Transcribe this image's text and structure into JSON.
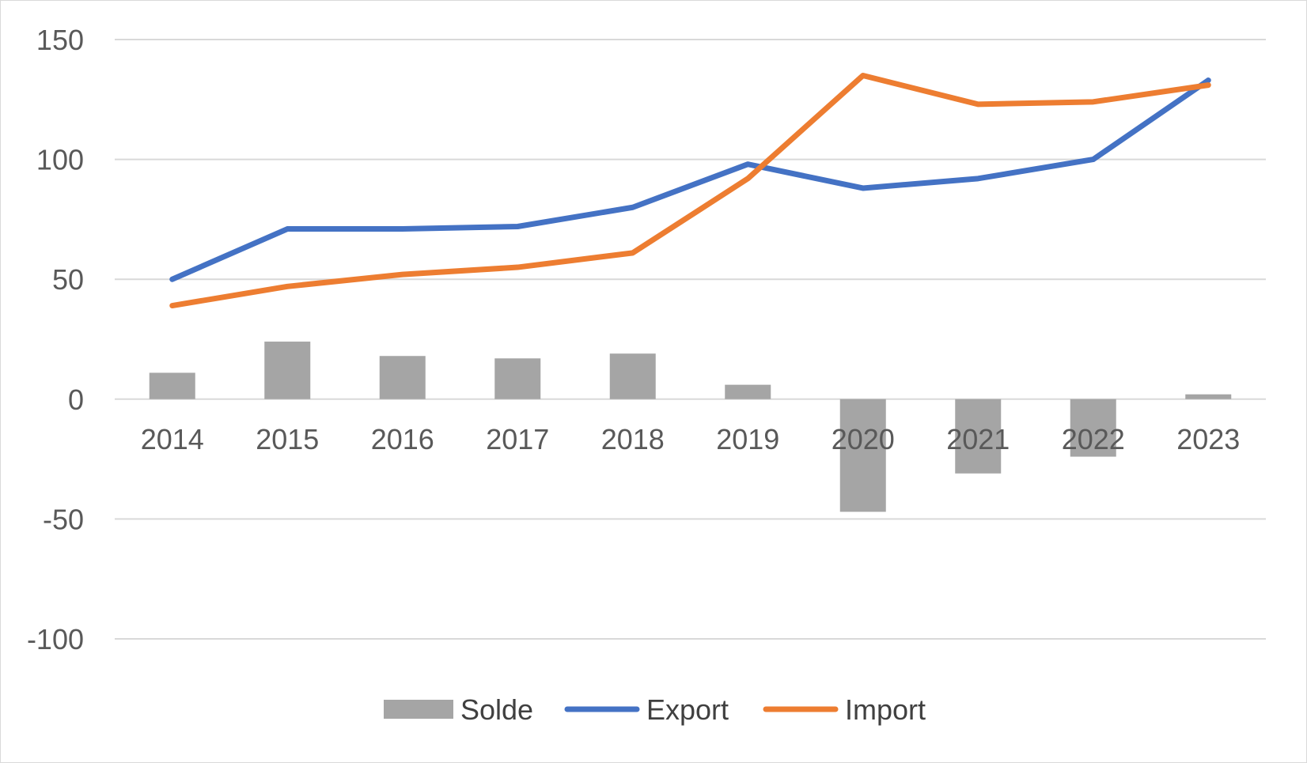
{
  "chart_data": {
    "type": "bar+line",
    "categories": [
      "2014",
      "2015",
      "2016",
      "2017",
      "2018",
      "2019",
      "2020",
      "2021",
      "2022",
      "2023"
    ],
    "series": [
      {
        "name": "Solde",
        "type": "bar",
        "color": "#a5a5a5",
        "values": [
          11,
          24,
          18,
          17,
          19,
          6,
          -47,
          -31,
          -24,
          2
        ]
      },
      {
        "name": "Export",
        "type": "line",
        "color": "#4472c4",
        "values": [
          50,
          71,
          71,
          72,
          80,
          98,
          88,
          92,
          100,
          133
        ]
      },
      {
        "name": "Import",
        "type": "line",
        "color": "#ed7d31",
        "values": [
          39,
          47,
          52,
          55,
          61,
          92,
          135,
          123,
          124,
          131
        ]
      }
    ],
    "yticks": [
      "150",
      "100",
      "50",
      "0",
      "-50",
      "-100"
    ],
    "ylim": [
      -100,
      150
    ],
    "grid": true,
    "legend_position": "bottom"
  }
}
